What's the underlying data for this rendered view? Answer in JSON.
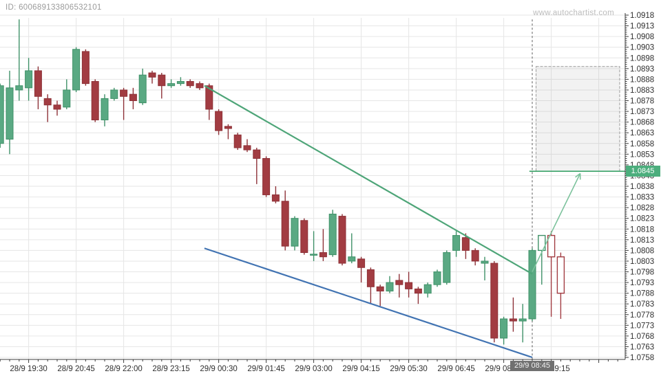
{
  "header": {
    "id_label": "ID: 600689133806532101",
    "watermark": "www.autochartist.com"
  },
  "chart_data": {
    "type": "candlestick",
    "instrument_note": "intraday 15-minute candles",
    "start_time": "28/9 18:45",
    "interval_minutes": 15,
    "candles": [
      [
        1.0858,
        1.0886,
        1.0856,
        1.0885
      ],
      [
        1.086,
        1.0892,
        1.0853,
        1.0884
      ],
      [
        1.0883,
        1.0916,
        1.0878,
        1.0885
      ],
      [
        1.0884,
        1.0898,
        1.0878,
        1.0892
      ],
      [
        1.0892,
        1.0894,
        1.0874,
        1.088
      ],
      [
        1.0879,
        1.0881,
        1.0868,
        1.0876
      ],
      [
        1.0876,
        1.0878,
        1.0871,
        1.0874
      ],
      [
        1.0875,
        1.0888,
        1.0874,
        1.0883
      ],
      [
        1.0883,
        1.0903,
        1.0882,
        1.0902
      ],
      [
        1.0901,
        1.0902,
        1.0885,
        1.0886
      ],
      [
        1.0887,
        1.0888,
        1.0868,
        1.0869
      ],
      [
        1.0869,
        1.0881,
        1.0866,
        1.0879
      ],
      [
        1.0879,
        1.0884,
        1.0878,
        1.0883
      ],
      [
        1.0883,
        1.0884,
        1.0869,
        1.088
      ],
      [
        1.0881,
        1.0884,
        1.0874,
        1.0878
      ],
      [
        1.0877,
        1.0893,
        1.0876,
        1.089
      ],
      [
        1.0891,
        1.0892,
        1.0886,
        1.0889
      ],
      [
        1.089,
        1.0891,
        1.0879,
        1.0885
      ],
      [
        1.0885,
        1.0888,
        1.0884,
        1.0886
      ],
      [
        1.0886,
        1.0889,
        1.0885,
        1.0887
      ],
      [
        1.0887,
        1.0888,
        1.0884,
        1.0885
      ],
      [
        1.0886,
        1.0887,
        1.0883,
        1.0884
      ],
      [
        1.0885,
        1.0886,
        1.0869,
        1.0874
      ],
      [
        1.0873,
        1.0874,
        1.0862,
        1.0864
      ],
      [
        1.0866,
        1.0867,
        1.086,
        1.0865
      ],
      [
        1.0862,
        1.0863,
        1.0855,
        1.0856
      ],
      [
        1.0857,
        1.086,
        1.0854,
        1.0855
      ],
      [
        1.0855,
        1.0856,
        1.0839,
        1.0851
      ],
      [
        1.0851,
        1.0852,
        1.0833,
        1.0834
      ],
      [
        1.0834,
        1.0838,
        1.083,
        1.0831
      ],
      [
        1.0831,
        1.0836,
        1.0808,
        1.081
      ],
      [
        1.081,
        1.0824,
        1.0808,
        1.0823
      ],
      [
        1.0822,
        1.0823,
        1.0806,
        1.0807
      ],
      [
        1.0806,
        1.0817,
        1.0803,
        1.0806
      ],
      [
        1.0807,
        1.0818,
        1.0803,
        1.0805
      ],
      [
        1.0806,
        1.0827,
        1.0805,
        1.0825
      ],
      [
        1.0824,
        1.0825,
        1.0801,
        1.0802
      ],
      [
        1.0803,
        1.0816,
        1.0802,
        1.0805
      ],
      [
        1.0804,
        1.0805,
        1.0793,
        1.08
      ],
      [
        1.0799,
        1.08,
        1.0783,
        1.0791
      ],
      [
        1.0791,
        1.0792,
        1.0782,
        1.0789
      ],
      [
        1.0789,
        1.0796,
        1.0788,
        1.0793
      ],
      [
        1.0794,
        1.0797,
        1.0786,
        1.0792
      ],
      [
        1.0793,
        1.0798,
        1.0786,
        1.079
      ],
      [
        1.079,
        1.0791,
        1.0783,
        1.0788
      ],
      [
        1.0788,
        1.0793,
        1.0786,
        1.0792
      ],
      [
        1.0792,
        1.0799,
        1.0791,
        1.0798
      ],
      [
        1.0793,
        1.0808,
        1.0792,
        1.0807
      ],
      [
        1.0808,
        1.0817,
        1.0805,
        1.0815
      ],
      [
        1.0814,
        1.0816,
        1.0804,
        1.0808
      ],
      [
        1.0808,
        1.0809,
        1.0801,
        1.0803
      ],
      [
        1.0802,
        1.0805,
        1.0794,
        1.0803
      ],
      [
        1.0802,
        1.0803,
        1.0765,
        1.0767
      ],
      [
        1.0767,
        1.0777,
        1.0764,
        1.0776
      ],
      [
        1.0776,
        1.0786,
        1.077,
        1.0775
      ],
      [
        1.0775,
        1.0783,
        1.0765,
        1.0776
      ],
      [
        1.0776,
        1.0809,
        1.0775,
        1.0808
      ],
      [
        1.0808,
        1.0815,
        1.0792,
        1.0815
      ],
      [
        1.0815,
        1.0817,
        1.0777,
        1.0805
      ],
      [
        1.0805,
        1.0807,
        1.0776,
        1.0788
      ]
    ],
    "hollow_from_index": 57,
    "x_axis": {
      "labels": [
        "28/9 19:30",
        "28/9 20:45",
        "28/9 22:00",
        "28/9 23:15",
        "29/9 00:30",
        "29/9 01:45",
        "29/9 03:00",
        "29/9 04:15",
        "29/9 05:30",
        "29/9 06:45",
        "29/9 08:00",
        "29/9 09:15"
      ],
      "label_start_index": 3,
      "label_every": 5
    },
    "y_axis": {
      "min": 1.0758,
      "max": 1.0918,
      "step": 0.0005,
      "labels": [
        "1.0918",
        "1.0913",
        "1.0908",
        "1.0903",
        "1.0898",
        "1.0893",
        "1.0888",
        "1.0883",
        "1.0878",
        "1.0873",
        "1.0868",
        "1.0863",
        "1.0858",
        "1.0853",
        "1.0848",
        "1.0843",
        "1.0838",
        "1.0833",
        "1.0828",
        "1.0823",
        "1.0818",
        "1.0813",
        "1.0808",
        "1.0803",
        "1.0798",
        "1.0793",
        "1.0788",
        "1.0783",
        "1.0778",
        "1.0773",
        "1.0768",
        "1.0763",
        "1.0758"
      ]
    },
    "highlight": {
      "price_badge": "1.0845",
      "price": 1.0845,
      "time_badge": "29/9 08:45",
      "time_index": 56
    },
    "annotations": {
      "upper_trendline": {
        "from": {
          "i": 21.5,
          "price": 1.0885
        },
        "to": {
          "i": 56,
          "price": 1.0797
        }
      },
      "lower_trendline": {
        "from": {
          "i": 21.5,
          "price": 1.0809
        },
        "to": {
          "i": 56,
          "price": 1.0758
        }
      },
      "forecast_box": {
        "i_from": 56.4,
        "i_to": 65.2,
        "price_top": 1.0894,
        "price_bottom": 1.0845
      },
      "target_line": {
        "price": 1.0845,
        "i_from": 55.7,
        "i_to": 65.8
      },
      "arrow": {
        "from": {
          "i": 56.0,
          "price": 1.0798
        },
        "to": {
          "i": 61.05,
          "price": 1.0844
        }
      },
      "time_marker": {
        "i": 56,
        "price_top": 1.0916,
        "price_bottom": 1.0758
      }
    },
    "colors": {
      "bull_fill": "#5aa983",
      "bull_border": "#3f9168",
      "bear_fill": "#a23c42",
      "bear_border": "#8e3238",
      "hollow_fill": "#ffffff",
      "upper_trendline": "#4ea578",
      "lower_trendline": "#4173b2",
      "arrow": "#7cc29c",
      "target_line": "#3aa268",
      "forecast_box_border": "#9a9a9a",
      "forecast_box_fill": "rgba(130,130,130,0.10)",
      "time_marker": "#5a5a5a",
      "grid": "#e6e6e6",
      "axis": "#3c3c3c",
      "tick_label": "#2e2e2e",
      "price_badge_bg": "#4cae7d",
      "time_badge_bg": "#707070"
    }
  }
}
